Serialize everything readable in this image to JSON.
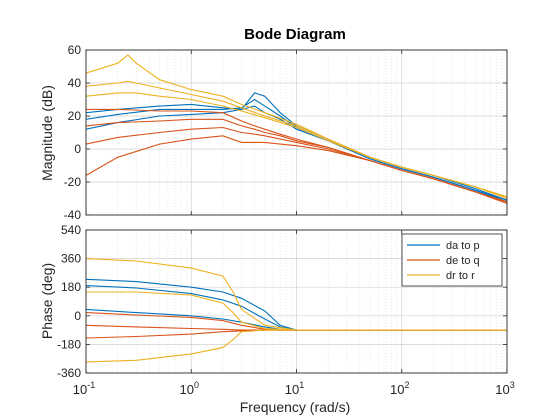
{
  "chart_data": {
    "type": "line",
    "title": "Bode Diagram",
    "xlabel": "Frequency  (rad/s)",
    "xscale": "log",
    "xlim": [
      0.1,
      1000
    ],
    "x_ticks": [
      {
        "value": 0.1,
        "base": "10",
        "exp": "-1"
      },
      {
        "value": 1,
        "base": "10",
        "exp": "0"
      },
      {
        "value": 10,
        "base": "10",
        "exp": "1"
      },
      {
        "value": 100,
        "base": "10",
        "exp": "2"
      },
      {
        "value": 1000,
        "base": "10",
        "exp": "3"
      }
    ],
    "grid": true,
    "legend": {
      "placement": "top-right of phase axes",
      "entries": [
        {
          "label": "da to p",
          "color": "#0072BD"
        },
        {
          "label": "de to q",
          "color": "#D95319"
        },
        {
          "label": "dr to r",
          "color": "#EDB120"
        }
      ]
    },
    "subplots": [
      {
        "ylabel": "Magnitude (dB)",
        "ylim": [
          -40,
          60
        ],
        "y_ticks": [
          "-40",
          "-20",
          "0",
          "20",
          "40",
          "60"
        ],
        "series": [
          {
            "name": "da to p",
            "color": "#0072BD",
            "x": [
              0.1,
              0.2,
              0.5,
              1,
              2,
              3,
              4,
              5,
              7,
              10,
              20,
              50,
              100,
              200,
              500,
              1000
            ],
            "curves": [
              [
                12,
                16,
                20,
                21,
                22,
                24,
                26,
                22,
                18,
                12,
                5,
                -6,
                -12,
                -17,
                -25,
                -32
              ],
              [
                18,
                21,
                24,
                24,
                24,
                25,
                30,
                26,
                20,
                13,
                5,
                -6,
                -12,
                -17,
                -25,
                -31
              ],
              [
                22,
                24,
                26,
                27,
                25,
                24,
                34,
                32,
                22,
                14,
                6,
                -5,
                -11,
                -16,
                -24,
                -31
              ]
            ]
          },
          {
            "name": "de to q",
            "color": "#D95319",
            "x": [
              0.1,
              0.2,
              0.5,
              1,
              2,
              3,
              4,
              5,
              7,
              10,
              20,
              50,
              100,
              200,
              500,
              1000
            ],
            "curves": [
              [
                -16,
                -5,
                3,
                6,
                8,
                4,
                4,
                4,
                3,
                2,
                -1,
                -7,
                -13,
                -18,
                -26,
                -33
              ],
              [
                3,
                7,
                10,
                12,
                13,
                10,
                9,
                8,
                6,
                4,
                0,
                -7,
                -13,
                -18,
                -26,
                -33
              ],
              [
                14,
                16,
                17,
                18,
                18,
                14,
                12,
                10,
                8,
                5,
                1,
                -7,
                -13,
                -18,
                -26,
                -32
              ],
              [
                24,
                24,
                23,
                23,
                22,
                17,
                14,
                12,
                9,
                6,
                1,
                -7,
                -13,
                -18,
                -26,
                -32
              ]
            ]
          },
          {
            "name": "dr to r",
            "color": "#EDB120",
            "x": [
              0.1,
              0.2,
              0.25,
              0.3,
              0.5,
              1,
              2,
              3,
              5,
              10,
              20,
              50,
              100,
              200,
              500,
              1000
            ],
            "curves": [
              [
                46,
                52,
                57,
                52,
                42,
                36,
                32,
                27,
                22,
                15,
                6,
                -5,
                -11,
                -16,
                -23,
                -29
              ],
              [
                38,
                40,
                41,
                40,
                37,
                33,
                29,
                25,
                20,
                14,
                6,
                -5,
                -11,
                -16,
                -23,
                -29
              ],
              [
                32,
                34,
                34,
                34,
                32,
                30,
                26,
                23,
                19,
                13,
                5,
                -5,
                -11,
                -16,
                -23,
                -30
              ]
            ]
          }
        ]
      },
      {
        "ylabel": "Phase (deg)",
        "ylim": [
          -360,
          540
        ],
        "y_ticks": [
          "-360",
          "-180",
          "0",
          "180",
          "360",
          "540"
        ],
        "series": [
          {
            "name": "da to p",
            "color": "#0072BD",
            "x": [
              0.1,
              0.3,
              1,
              2,
              3,
              5,
              7,
              10,
              20,
              1000
            ],
            "curves": [
              [
                230,
                215,
                180,
                150,
                110,
                30,
                -60,
                -90,
                -90,
                -90
              ],
              [
                190,
                175,
                140,
                100,
                60,
                -20,
                -70,
                -90,
                -90,
                -90
              ],
              [
                40,
                20,
                0,
                -20,
                -40,
                -70,
                -85,
                -90,
                -90,
                -90
              ]
            ]
          },
          {
            "name": "de to q",
            "color": "#D95319",
            "x": [
              0.1,
              0.3,
              1,
              2,
              3,
              5,
              7,
              10,
              20,
              1000
            ],
            "curves": [
              [
                20,
                5,
                -10,
                -30,
                -60,
                -85,
                -90,
                -90,
                -90,
                -90
              ],
              [
                -60,
                -70,
                -80,
                -85,
                -90,
                -90,
                -90,
                -90,
                -90,
                -90
              ],
              [
                -140,
                -130,
                -115,
                -100,
                -95,
                -90,
                -90,
                -90,
                -90,
                -90
              ]
            ]
          },
          {
            "name": "dr to r",
            "color": "#EDB120",
            "x": [
              0.1,
              0.3,
              1,
              2,
              2.5,
              3,
              5,
              10,
              20,
              1000
            ],
            "curves": [
              [
                360,
                345,
                300,
                250,
                150,
                40,
                -60,
                -90,
                -90,
                -90
              ],
              [
                150,
                150,
                130,
                80,
                20,
                -40,
                -80,
                -90,
                -90,
                -90
              ],
              [
                -290,
                -280,
                -240,
                -200,
                -150,
                -100,
                -90,
                -90,
                -90,
                -90
              ]
            ]
          }
        ]
      }
    ]
  }
}
